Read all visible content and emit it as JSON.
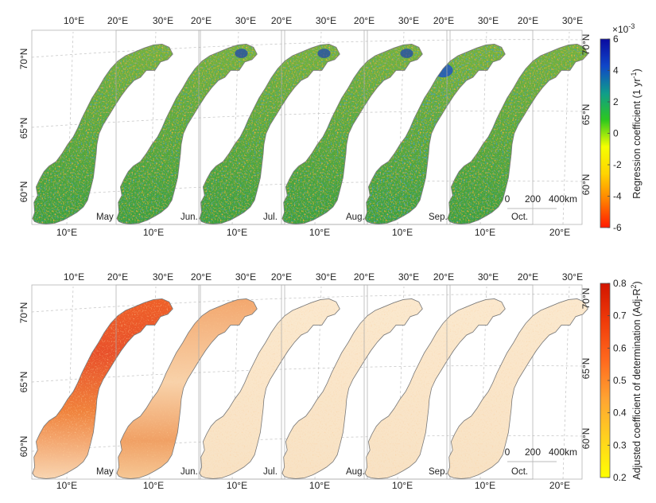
{
  "months": [
    "May",
    "Jun.",
    "Jul.",
    "Aug.",
    "Sep.",
    "Oct."
  ],
  "lon_top_ticks": [
    "10°E",
    "20°E",
    "30°E",
    "20°E",
    "30°E",
    "20°E",
    "30°E",
    "20°E",
    "30°E",
    "20°E",
    "30°E",
    "20°E",
    "30°E"
  ],
  "lon_bottom_ticks": [
    "10°E",
    "10°E",
    "10°E",
    "10°E",
    "10°E",
    "10°E",
    "20°E"
  ],
  "lat_left_ticks": [
    "70°N",
    "65°N",
    "60°N"
  ],
  "lat_right_ticks": [
    "70°N",
    "65°N",
    "60°N"
  ],
  "scale_bar": {
    "labels": [
      "0",
      "200",
      "400km"
    ]
  },
  "panels": [
    {
      "id": "regression",
      "colorbar": {
        "label": "Regression coefficient (1 yr",
        "label_sup": "-1",
        "label_tail": ")",
        "exponent_base": "×10",
        "exponent_sup": "-3",
        "ticks": [
          "6",
          "4",
          "2",
          "0",
          "-2",
          "-4",
          "-6"
        ],
        "range": [
          -6,
          6
        ],
        "colors": [
          "#ff1a00",
          "#ff7f00",
          "#ffd400",
          "#f5ff00",
          "#2cc81e",
          "#0f9c8c",
          "#1046c8",
          "#0a0aa0"
        ]
      }
    },
    {
      "id": "adjr2",
      "colorbar": {
        "label": "Adjusted coefficient of determination (Adj-R",
        "label_sup": "2",
        "label_tail": ")",
        "ticks": [
          "0.8",
          "0.7",
          "0.6",
          "0.5",
          "0.4",
          "0.3",
          "0.2"
        ],
        "range": [
          0.2,
          0.8
        ],
        "colors": [
          "#ffff00",
          "#ffd21e",
          "#ffa532",
          "#ff6a1e",
          "#f03c0a",
          "#d21400"
        ]
      }
    }
  ],
  "colors": {
    "map_outline": "#7a7a7a",
    "graticule": "#c8c8c8",
    "panel_border": "#aaaaaa"
  }
}
